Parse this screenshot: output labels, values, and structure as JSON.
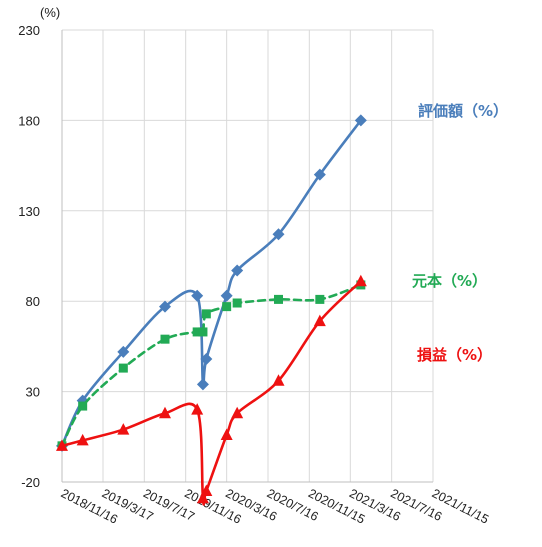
{
  "chart_data": {
    "type": "line",
    "y_unit": "(%)",
    "ylim": [
      -20,
      230
    ],
    "y_ticks": [
      "230",
      "180",
      "130",
      "80",
      "30",
      "-20"
    ],
    "x_tick_labels": [
      "2018/11/16",
      "2019/3/17",
      "2019/7/17",
      "2019/11/16",
      "2020/3/16",
      "2020/7/16",
      "2020/11/15",
      "2021/3/16",
      "2021/7/16",
      "2021/11/15"
    ],
    "grid": "vertical and horizontal",
    "series": [
      {
        "name": "評価額（%）",
        "color": "#4a7ebb",
        "line_style": "solid",
        "marker": "diamond",
        "points": [
          {
            "x": "2018/11/16",
            "y": 0
          },
          {
            "x": "2019/1/16",
            "y": 25
          },
          {
            "x": "2019/5/16",
            "y": 52
          },
          {
            "x": "2019/9/16",
            "y": 77
          },
          {
            "x": "2019/12/20",
            "y": 83
          },
          {
            "x": "2020/1/6",
            "y": 34
          },
          {
            "x": "2020/1/16",
            "y": 48
          },
          {
            "x": "2020/3/16",
            "y": 83
          },
          {
            "x": "2020/4/16",
            "y": 97
          },
          {
            "x": "2020/8/16",
            "y": 117
          },
          {
            "x": "2020/12/16",
            "y": 150
          },
          {
            "x": "2021/4/16",
            "y": 180
          }
        ]
      },
      {
        "name": "元本（%）",
        "color": "#22aa55",
        "line_style": "dashed",
        "marker": "square",
        "points": [
          {
            "x": "2018/11/16",
            "y": 0
          },
          {
            "x": "2019/1/16",
            "y": 22
          },
          {
            "x": "2019/5/16",
            "y": 43
          },
          {
            "x": "2019/9/16",
            "y": 59
          },
          {
            "x": "2019/12/20",
            "y": 63
          },
          {
            "x": "2020/1/6",
            "y": 63
          },
          {
            "x": "2020/1/16",
            "y": 73
          },
          {
            "x": "2020/3/16",
            "y": 77
          },
          {
            "x": "2020/4/16",
            "y": 79
          },
          {
            "x": "2020/8/16",
            "y": 81
          },
          {
            "x": "2020/12/16",
            "y": 81
          },
          {
            "x": "2021/4/16",
            "y": 89
          }
        ]
      },
      {
        "name": "損益（%）",
        "color": "#ee1111",
        "line_style": "solid",
        "marker": "triangle",
        "points": [
          {
            "x": "2018/11/16",
            "y": 0
          },
          {
            "x": "2019/1/16",
            "y": 3
          },
          {
            "x": "2019/5/16",
            "y": 9
          },
          {
            "x": "2019/9/16",
            "y": 18
          },
          {
            "x": "2019/12/20",
            "y": 20
          },
          {
            "x": "2020/1/6",
            "y": -29
          },
          {
            "x": "2020/1/16",
            "y": -25
          },
          {
            "x": "2020/3/16",
            "y": 6
          },
          {
            "x": "2020/4/16",
            "y": 18
          },
          {
            "x": "2020/8/16",
            "y": 36
          },
          {
            "x": "2020/12/16",
            "y": 69
          },
          {
            "x": "2021/4/16",
            "y": 91
          }
        ]
      }
    ]
  }
}
